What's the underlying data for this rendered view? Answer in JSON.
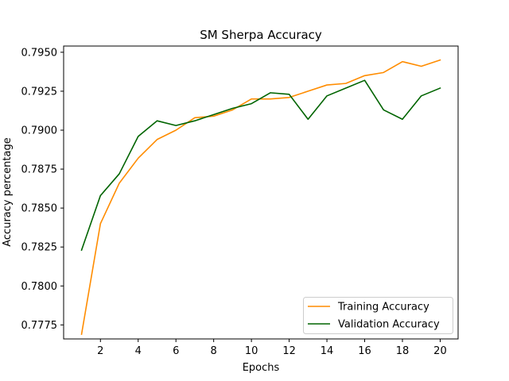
{
  "chart_data": {
    "type": "line",
    "title": "SM Sherpa Accuracy",
    "xlabel": "Epochs",
    "ylabel": "Accuracy percentage",
    "x": [
      1,
      2,
      3,
      4,
      5,
      6,
      7,
      8,
      9,
      10,
      11,
      12,
      13,
      14,
      15,
      16,
      17,
      18,
      19,
      20
    ],
    "xlim": [
      0.05,
      20.95
    ],
    "ylim": [
      0.7766,
      0.7954
    ],
    "xticks": [
      2,
      4,
      6,
      8,
      10,
      12,
      14,
      16,
      18,
      20
    ],
    "xtick_labels": [
      "2",
      "4",
      "6",
      "8",
      "10",
      "12",
      "14",
      "16",
      "18",
      "20"
    ],
    "yticks": [
      0.7775,
      0.78,
      0.7825,
      0.785,
      0.7875,
      0.79,
      0.7925,
      0.795
    ],
    "ytick_labels": [
      "0.7775",
      "0.7800",
      "0.7825",
      "0.7850",
      "0.7875",
      "0.7900",
      "0.7925",
      "0.7950"
    ],
    "grid": false,
    "legend_position": "lower-right",
    "series": [
      {
        "name": "Training Accuracy",
        "color": "#ff8c00",
        "values": [
          0.7769,
          0.784,
          0.7866,
          0.7882,
          0.7894,
          0.79,
          0.7908,
          0.7909,
          0.7913,
          0.792,
          0.792,
          0.7921,
          0.7925,
          0.7929,
          0.793,
          0.7935,
          0.7937,
          0.7944,
          0.7941,
          0.7945
        ]
      },
      {
        "name": "Validation Accuracy",
        "color": "#006400",
        "values": [
          0.7823,
          0.7858,
          0.7872,
          0.7896,
          0.7906,
          0.7903,
          0.7906,
          0.791,
          0.7914,
          0.7917,
          0.7924,
          0.7923,
          0.7907,
          0.7922,
          0.7927,
          0.7932,
          0.7913,
          0.7907,
          0.7922,
          0.7927
        ]
      }
    ]
  }
}
